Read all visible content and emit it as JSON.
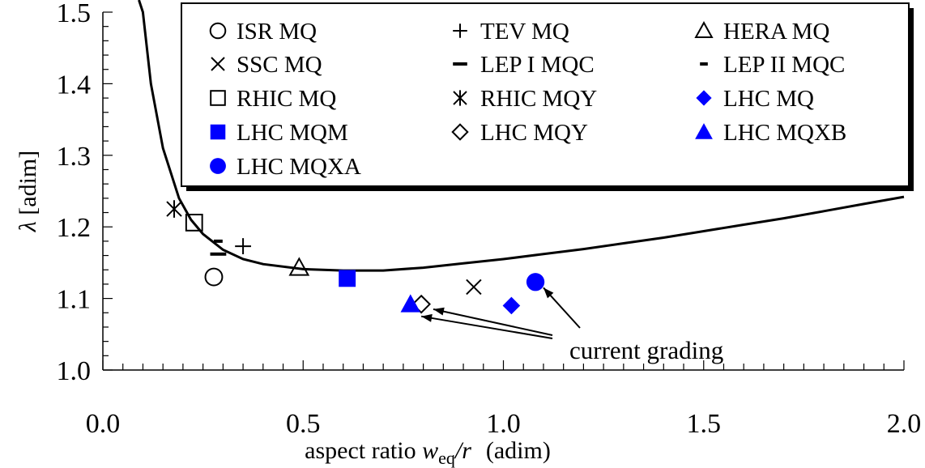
{
  "colors": {
    "blue": "#0000FF",
    "black": "#000000"
  },
  "chart_data": {
    "type": "scatter",
    "xlabel": {
      "prefix": "aspect ratio ",
      "var": "w",
      "sub": "eq",
      "suffix": "/r",
      "unit": "(adim)"
    },
    "ylabel": {
      "symbol": "λ",
      "unit": "[adim]"
    },
    "xlim": [
      0.0,
      2.0
    ],
    "ylim": [
      1.0,
      1.5
    ],
    "x_ticks": [
      "0.0",
      "0.5",
      "1.0",
      "1.5",
      "2.0"
    ],
    "y_ticks": [
      "1.0",
      "1.1",
      "1.2",
      "1.3",
      "1.4",
      "1.5"
    ],
    "x_tick_values": [
      0.0,
      0.5,
      1.0,
      1.5,
      2.0
    ],
    "y_tick_values": [
      1.0,
      1.1,
      1.2,
      1.3,
      1.4,
      1.5
    ],
    "legend_position": "top-right",
    "curve": {
      "x": [
        0.1,
        0.12,
        0.15,
        0.19,
        0.22,
        0.25,
        0.3,
        0.35,
        0.4,
        0.5,
        0.6,
        0.7,
        0.8,
        0.9,
        1.0,
        1.1,
        1.2,
        1.3,
        1.4,
        1.5,
        1.6,
        1.7,
        1.8,
        1.9,
        2.0
      ],
      "y": [
        1.5,
        1.4,
        1.31,
        1.24,
        1.21,
        1.19,
        1.168,
        1.155,
        1.148,
        1.141,
        1.139,
        1.139,
        1.143,
        1.149,
        1.155,
        1.162,
        1.169,
        1.177,
        1.185,
        1.194,
        1.203,
        1.212,
        1.222,
        1.232,
        1.242
      ]
    },
    "series": [
      {
        "name": "ISR MQ",
        "marker": "circle-open",
        "color": "black",
        "x": [
          0.277
        ],
        "y": [
          1.13
        ]
      },
      {
        "name": "TEV MQ",
        "marker": "plus",
        "color": "black",
        "x": [
          0.35
        ],
        "y": [
          1.173
        ]
      },
      {
        "name": "HERA MQ",
        "marker": "triangle-open",
        "color": "black",
        "x": [
          0.49
        ],
        "y": [
          1.143
        ]
      },
      {
        "name": "SSC MQ",
        "marker": "cross",
        "color": "black",
        "x": [
          0.926
        ],
        "y": [
          1.116
        ]
      },
      {
        "name": "LEP I MQC",
        "marker": "dash-long",
        "color": "black",
        "x": [
          0.288
        ],
        "y": [
          1.162
        ]
      },
      {
        "name": "LEP II MQC",
        "marker": "dash-short",
        "color": "black",
        "x": [
          0.288
        ],
        "y": [
          1.18
        ]
      },
      {
        "name": "RHIC MQ",
        "marker": "square-open",
        "color": "black",
        "x": [
          0.228
        ],
        "y": [
          1.206
        ]
      },
      {
        "name": "RHIC MQY",
        "marker": "asterisk",
        "color": "black",
        "x": [
          0.178
        ],
        "y": [
          1.225
        ]
      },
      {
        "name": "LHC MQ",
        "marker": "diamond-filled",
        "color": "blue",
        "x": [
          1.02
        ],
        "y": [
          1.09
        ]
      },
      {
        "name": "LHC MQM",
        "marker": "square-filled",
        "color": "blue",
        "x": [
          0.61
        ],
        "y": [
          1.128
        ]
      },
      {
        "name": "LHC MQY",
        "marker": "diamond-open",
        "color": "black",
        "x": [
          0.795
        ],
        "y": [
          1.092
        ]
      },
      {
        "name": "LHC MQXB",
        "marker": "triangle-filled",
        "color": "blue",
        "x": [
          0.768
        ],
        "y": [
          1.092
        ]
      },
      {
        "name": "LHC MQXA",
        "marker": "circle-filled",
        "color": "blue",
        "x": [
          1.08
        ],
        "y": [
          1.123
        ]
      }
    ],
    "annotation": {
      "text": "current grading",
      "arrow_to": [
        {
          "x": 1.1,
          "y": 1.115
        },
        {
          "x": 0.825,
          "y": 1.085
        },
        {
          "x": 0.795,
          "y": 1.075
        }
      ]
    }
  }
}
